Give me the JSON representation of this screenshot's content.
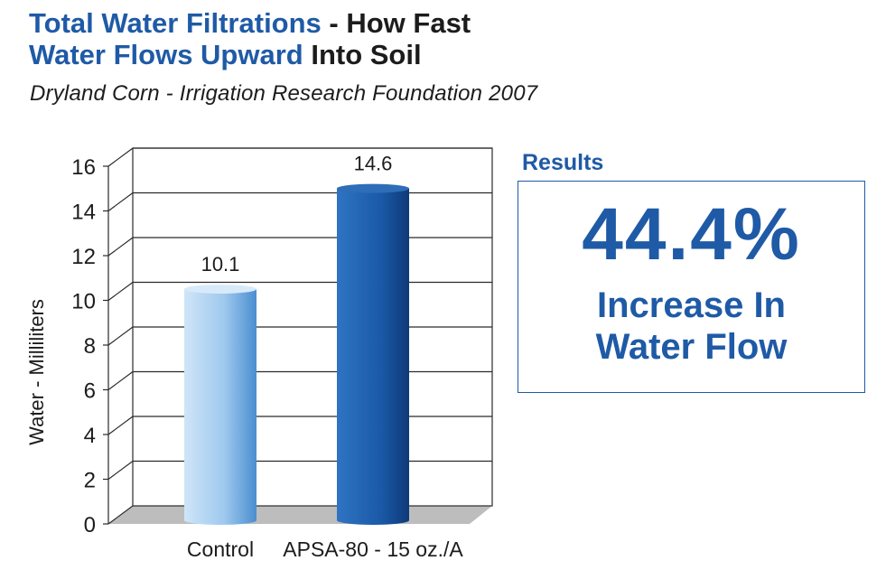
{
  "title": {
    "line1_blue": "Total Water Filtrations",
    "line1_dark": " - How Fast",
    "line2_blue": "Water Flows Upward",
    "line2_dark": " Into Soil"
  },
  "subtitle": "Dryland Corn - Irrigation Research Foundation 2007",
  "results": {
    "label": "Results",
    "percent": "44.4%",
    "line1": "Increase In",
    "line2": "Water Flow"
  },
  "chart_data": {
    "type": "bar",
    "categories": [
      "Control",
      "APSA-80 - 15 oz./A"
    ],
    "values": [
      10.1,
      14.6
    ],
    "data_labels": [
      "10.1",
      "14.6"
    ],
    "ylabel": "Water - Milliliters",
    "ylim": [
      0,
      16
    ],
    "yticks": [
      0,
      2,
      4,
      6,
      8,
      10,
      12,
      14,
      16
    ],
    "grid": true,
    "colors": {
      "control": [
        "#cfe5f8",
        "#4a8ed0"
      ],
      "treatment": [
        "#2f74c2",
        "#0e3a78"
      ],
      "floor": "#bdbdbd",
      "grid": "#2a2a2a"
    }
  }
}
